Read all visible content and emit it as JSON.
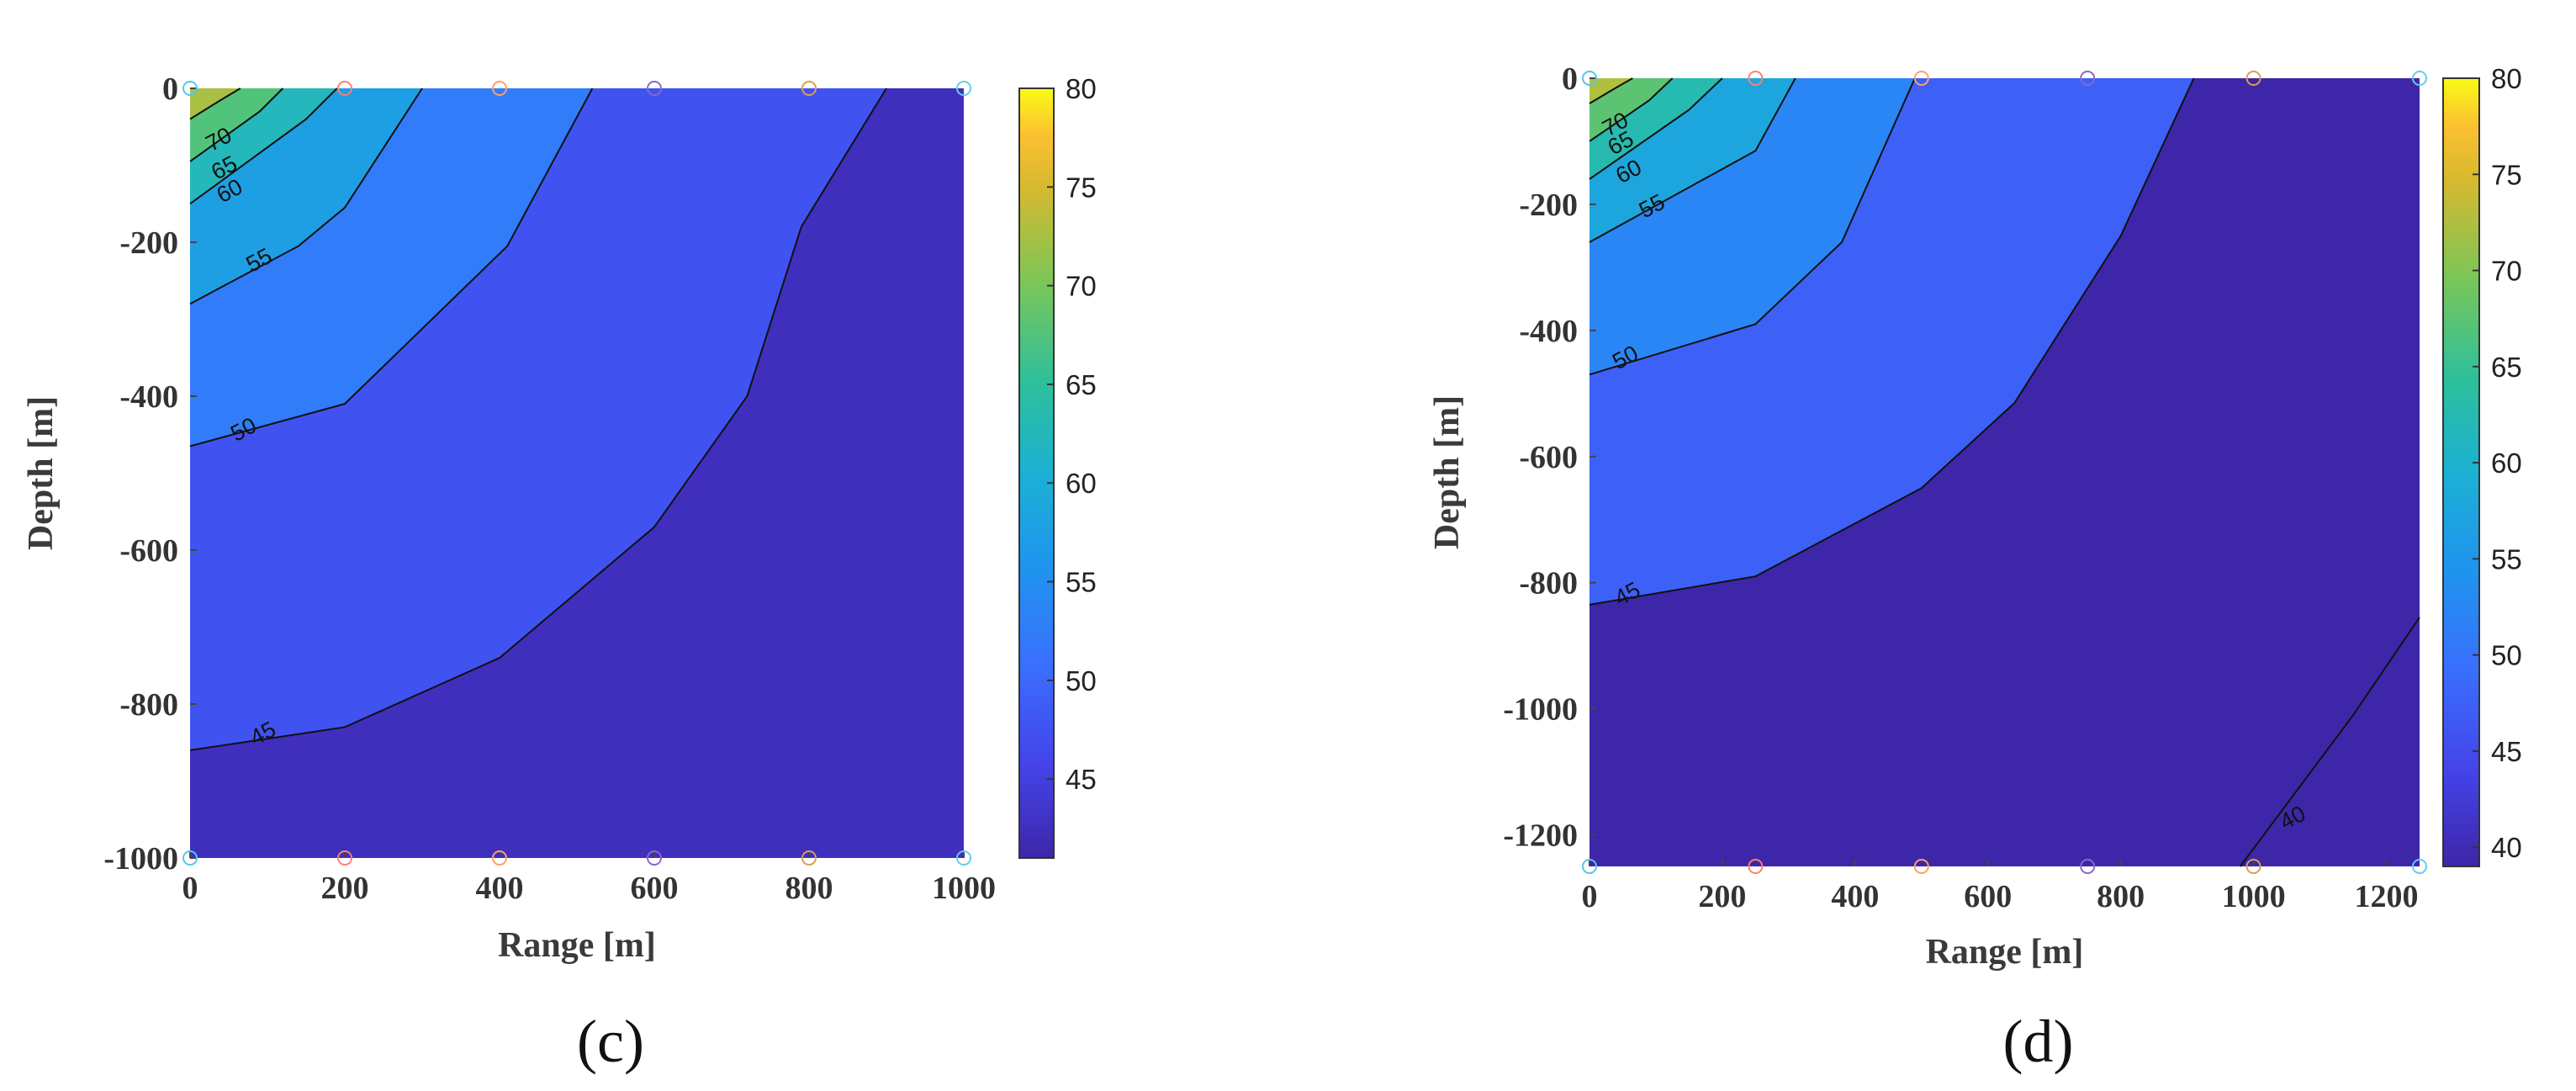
{
  "chart_data": [
    {
      "type": "contour",
      "panel_label": "(c)",
      "xlabel": "Range [m]",
      "ylabel": "Depth [m]",
      "xlim": [
        0,
        1000
      ],
      "ylim": [
        -1000,
        0
      ],
      "xticks": [
        "0",
        "200",
        "400",
        "600",
        "800",
        "1000"
      ],
      "yticks": [
        "0",
        "-200",
        "-400",
        "-600",
        "-800",
        "-1000"
      ],
      "colorbar": {
        "min": 41,
        "max": 80,
        "ticks": [
          "45",
          "50",
          "55",
          "60",
          "65",
          "70",
          "75",
          "80"
        ]
      },
      "levels": [
        {
          "value": 70,
          "line": [
            [
              0,
              -40
            ],
            [
              40,
              -15
            ],
            [
              65,
              0
            ]
          ],
          "label": "70",
          "label_at": [
            38,
            -68
          ]
        },
        {
          "value": 65,
          "line": [
            [
              0,
              -95
            ],
            [
              90,
              -30
            ],
            [
              120,
              0
            ]
          ],
          "label": "65",
          "label_at": [
            45,
            -105
          ]
        },
        {
          "value": 60,
          "line": [
            [
              0,
              -150
            ],
            [
              150,
              -40
            ],
            [
              190,
              0
            ]
          ],
          "label": "60",
          "label_at": [
            52,
            -135
          ]
        },
        {
          "value": 55,
          "line": [
            [
              0,
              -280
            ],
            [
              140,
              -205
            ],
            [
              200,
              -155
            ],
            [
              300,
              0
            ]
          ],
          "label": "55",
          "label_at": [
            90,
            -225
          ]
        },
        {
          "value": 50,
          "line": [
            [
              0,
              -465
            ],
            [
              200,
              -410
            ],
            [
              410,
              -205
            ],
            [
              520,
              0
            ]
          ],
          "label": "50",
          "label_at": [
            70,
            -445
          ]
        },
        {
          "value": 45,
          "line": [
            [
              0,
              -860
            ],
            [
              200,
              -830
            ],
            [
              400,
              -740
            ],
            [
              600,
              -570
            ],
            [
              720,
              -400
            ],
            [
              790,
              -180
            ],
            [
              900,
              0
            ]
          ],
          "label": "45",
          "label_at": [
            95,
            -840
          ]
        }
      ],
      "sample_markers": [
        {
          "range": 0,
          "depth": 0
        },
        {
          "range": 200,
          "depth": 0
        },
        {
          "range": 400,
          "depth": 0
        },
        {
          "range": 600,
          "depth": 0
        },
        {
          "range": 800,
          "depth": 0
        },
        {
          "range": 1000,
          "depth": 0
        },
        {
          "range": 0,
          "depth": -1000
        },
        {
          "range": 200,
          "depth": -1000
        },
        {
          "range": 400,
          "depth": -1000
        },
        {
          "range": 600,
          "depth": -1000
        },
        {
          "range": 800,
          "depth": -1000
        },
        {
          "range": 1000,
          "depth": -1000
        }
      ]
    },
    {
      "type": "contour",
      "panel_label": "(d)",
      "xlabel": "Range [m]",
      "ylabel": "Depth [m]",
      "xlim": [
        0,
        1250
      ],
      "ylim": [
        -1250,
        0
      ],
      "xticks": [
        "0",
        "200",
        "400",
        "600",
        "800",
        "1000",
        "1200"
      ],
      "yticks": [
        "0",
        "-200",
        "-400",
        "-600",
        "-800",
        "-1000",
        "-1200"
      ],
      "colorbar": {
        "min": 39,
        "max": 80,
        "ticks": [
          "40",
          "45",
          "50",
          "55",
          "60",
          "65",
          "70",
          "75",
          "80"
        ]
      },
      "levels": [
        {
          "value": 70,
          "line": [
            [
              0,
              -40
            ],
            [
              40,
              -15
            ],
            [
              65,
              0
            ]
          ],
          "label": "70",
          "label_at": [
            40,
            -75
          ]
        },
        {
          "value": 65,
          "line": [
            [
              0,
              -100
            ],
            [
              90,
              -35
            ],
            [
              125,
              0
            ]
          ],
          "label": "65",
          "label_at": [
            48,
            -105
          ]
        },
        {
          "value": 60,
          "line": [
            [
              0,
              -160
            ],
            [
              150,
              -50
            ],
            [
              200,
              0
            ]
          ],
          "label": "60",
          "label_at": [
            60,
            -150
          ]
        },
        {
          "value": 55,
          "line": [
            [
              0,
              -260
            ],
            [
              250,
              -115
            ],
            [
              310,
              0
            ]
          ],
          "label": "55",
          "label_at": [
            95,
            -205
          ]
        },
        {
          "value": 50,
          "line": [
            [
              0,
              -470
            ],
            [
              250,
              -390
            ],
            [
              380,
              -260
            ],
            [
              490,
              0
            ]
          ],
          "label": "50",
          "label_at": [
            55,
            -445
          ]
        },
        {
          "value": 45,
          "line": [
            [
              0,
              -835
            ],
            [
              250,
              -790
            ],
            [
              500,
              -650
            ],
            [
              640,
              -515
            ],
            [
              800,
              -250
            ],
            [
              910,
              0
            ]
          ],
          "label": "45",
          "label_at": [
            58,
            -820
          ]
        },
        {
          "value": 40,
          "line": [
            [
              980,
              -1250
            ],
            [
              1150,
              -1010
            ],
            [
              1250,
              -855
            ]
          ],
          "label": "40",
          "label_at": [
            1060,
            -1175
          ]
        }
      ],
      "sample_markers": [
        {
          "range": 0,
          "depth": 0
        },
        {
          "range": 250,
          "depth": 0
        },
        {
          "range": 500,
          "depth": 0
        },
        {
          "range": 750,
          "depth": 0
        },
        {
          "range": 1000,
          "depth": 0
        },
        {
          "range": 1250,
          "depth": 0
        },
        {
          "range": 0,
          "depth": -1250
        },
        {
          "range": 250,
          "depth": -1250
        },
        {
          "range": 500,
          "depth": -1250
        },
        {
          "range": 750,
          "depth": -1250
        },
        {
          "range": 1000,
          "depth": -1250
        },
        {
          "range": 1250,
          "depth": -1250
        }
      ]
    }
  ]
}
